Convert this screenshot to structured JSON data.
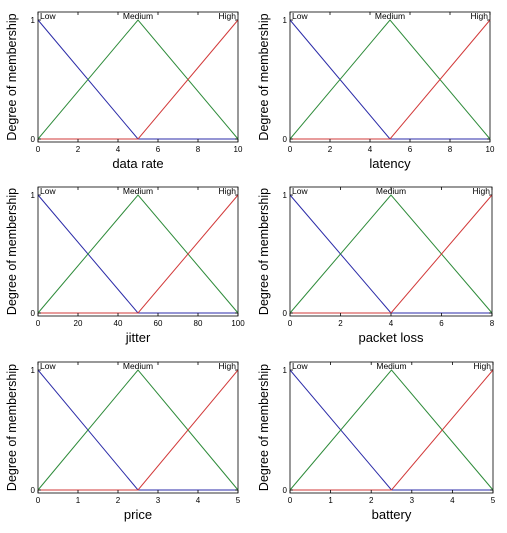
{
  "colors": {
    "Low": "#2b2ba8",
    "Medium": "#2e8b3a",
    "High": "#d23a3a",
    "axis": "#000000"
  },
  "chart_data": [
    {
      "type": "line",
      "xlabel": "data rate",
      "ylabel": "Degree of membership",
      "xlim": [
        0,
        10
      ],
      "ylim": [
        0,
        1
      ],
      "xticks": [
        0,
        2,
        4,
        6,
        8,
        10
      ],
      "yticks": [
        0,
        1
      ],
      "series": [
        {
          "name": "Low",
          "x": [
            0,
            5,
            10
          ],
          "y": [
            1,
            0,
            0
          ]
        },
        {
          "name": "Medium",
          "x": [
            0,
            5,
            10
          ],
          "y": [
            0,
            1,
            0
          ]
        },
        {
          "name": "High",
          "x": [
            0,
            5,
            10
          ],
          "y": [
            0,
            0,
            1
          ]
        }
      ]
    },
    {
      "type": "line",
      "xlabel": "latency",
      "ylabel": "Degree of membership",
      "xlim": [
        0,
        10
      ],
      "ylim": [
        0,
        1
      ],
      "xticks": [
        0,
        2,
        4,
        6,
        8,
        10
      ],
      "yticks": [
        0,
        1
      ],
      "series": [
        {
          "name": "Low",
          "x": [
            0,
            5,
            10
          ],
          "y": [
            1,
            0,
            0
          ]
        },
        {
          "name": "Medium",
          "x": [
            0,
            5,
            10
          ],
          "y": [
            0,
            1,
            0
          ]
        },
        {
          "name": "High",
          "x": [
            0,
            5,
            10
          ],
          "y": [
            0,
            0,
            1
          ]
        }
      ]
    },
    {
      "type": "line",
      "xlabel": "jitter",
      "ylabel": "Degree of membership",
      "xlim": [
        0,
        100
      ],
      "ylim": [
        0,
        1
      ],
      "xticks": [
        0,
        20,
        40,
        60,
        80,
        100
      ],
      "yticks": [
        0,
        1
      ],
      "series": [
        {
          "name": "Low",
          "x": [
            0,
            50,
            100
          ],
          "y": [
            1,
            0,
            0
          ]
        },
        {
          "name": "Medium",
          "x": [
            0,
            50,
            100
          ],
          "y": [
            0,
            1,
            0
          ]
        },
        {
          "name": "High",
          "x": [
            0,
            50,
            100
          ],
          "y": [
            0,
            0,
            1
          ]
        }
      ]
    },
    {
      "type": "line",
      "xlabel": "packet loss",
      "ylabel": "Degree of membership",
      "xlim": [
        0,
        8
      ],
      "ylim": [
        0,
        1
      ],
      "xticks": [
        0,
        2,
        4,
        6,
        8
      ],
      "yticks": [
        0,
        1
      ],
      "series": [
        {
          "name": "Low",
          "x": [
            0,
            4,
            8
          ],
          "y": [
            1,
            0,
            0
          ]
        },
        {
          "name": "Medium",
          "x": [
            0,
            4,
            8
          ],
          "y": [
            0,
            1,
            0
          ]
        },
        {
          "name": "High",
          "x": [
            0,
            4,
            8
          ],
          "y": [
            0,
            0,
            1
          ]
        }
      ]
    },
    {
      "type": "line",
      "xlabel": "price",
      "ylabel": "Degree of membership",
      "xlim": [
        0,
        5
      ],
      "ylim": [
        0,
        1
      ],
      "xticks": [
        0,
        1,
        2,
        3,
        4,
        5
      ],
      "yticks": [
        0,
        1
      ],
      "series": [
        {
          "name": "Low",
          "x": [
            0,
            2.5,
            5
          ],
          "y": [
            1,
            0,
            0
          ]
        },
        {
          "name": "Medium",
          "x": [
            0,
            2.5,
            5
          ],
          "y": [
            0,
            1,
            0
          ]
        },
        {
          "name": "High",
          "x": [
            0,
            2.5,
            5
          ],
          "y": [
            0,
            0,
            1
          ]
        }
      ]
    },
    {
      "type": "line",
      "xlabel": "battery",
      "ylabel": "Degree of membership",
      "xlim": [
        0,
        5
      ],
      "ylim": [
        0,
        1
      ],
      "xticks": [
        0,
        1,
        2,
        3,
        4,
        5
      ],
      "yticks": [
        0,
        1
      ],
      "series": [
        {
          "name": "Low",
          "x": [
            0,
            2.5,
            5
          ],
          "y": [
            1,
            0,
            0
          ]
        },
        {
          "name": "Medium",
          "x": [
            0,
            2.5,
            5
          ],
          "y": [
            0,
            1,
            0
          ]
        },
        {
          "name": "High",
          "x": [
            0,
            2.5,
            5
          ],
          "y": [
            0,
            0,
            1
          ]
        }
      ]
    }
  ]
}
